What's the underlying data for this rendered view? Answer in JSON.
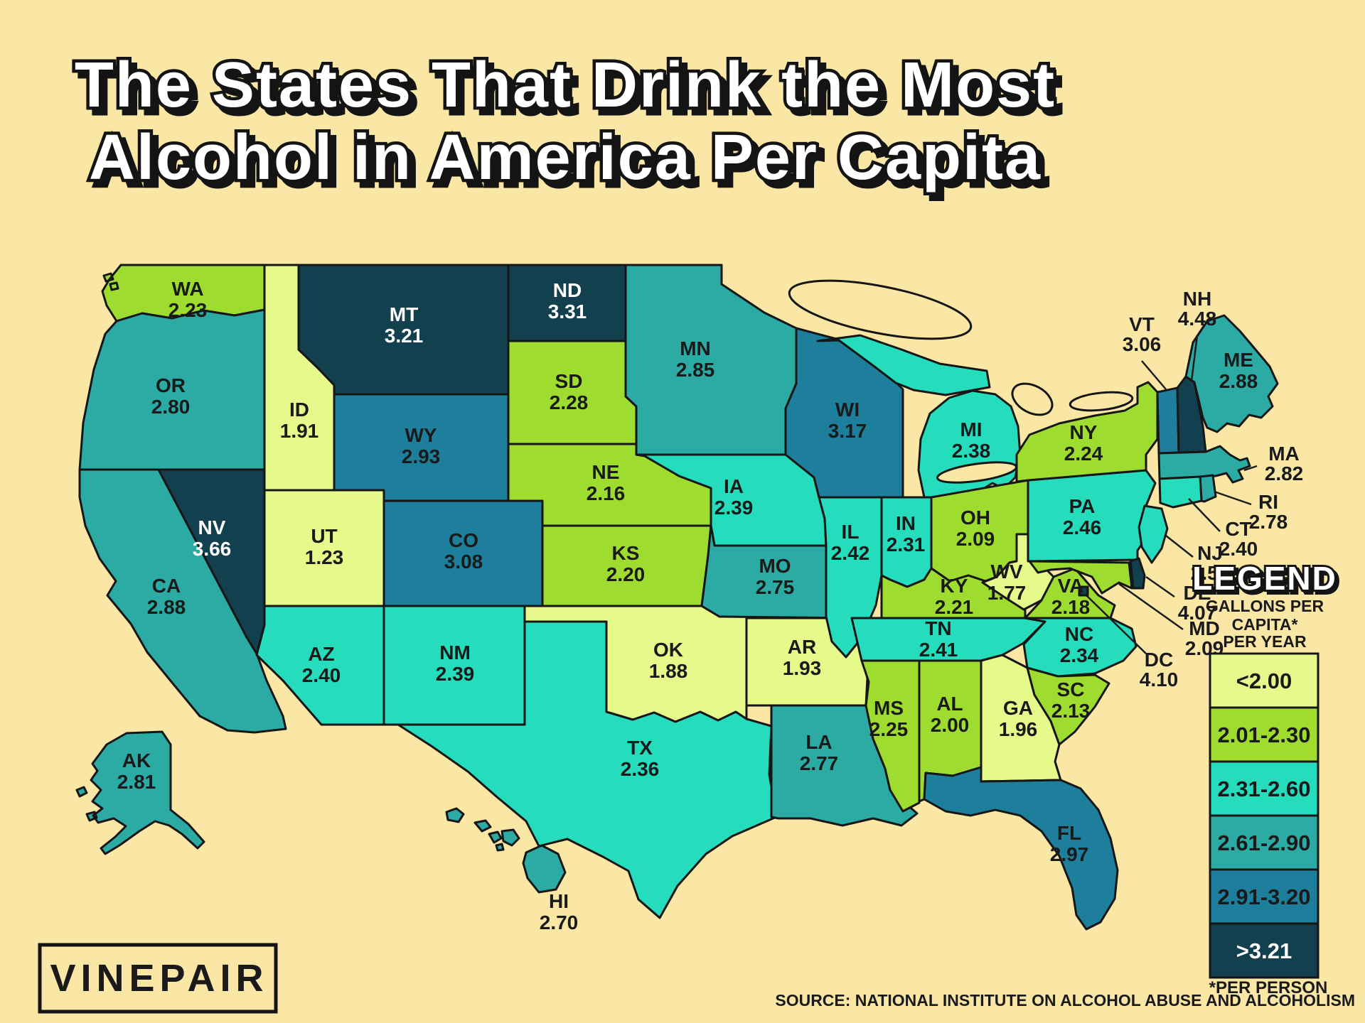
{
  "title": {
    "line1": "The States That Drink the Most",
    "line2": "Alcohol in America Per Capita"
  },
  "logo": "VINEPAIR",
  "source": "SOURCE: NATIONAL INSTITUTE ON ALCOHOL ABUSE AND ALCOHOLISM",
  "legend": {
    "title": "LEGEND",
    "subtitle_lines": [
      "GALLONS PER",
      "CAPITA*",
      "PER YEAR"
    ],
    "footnote": "*PER PERSON",
    "buckets": [
      {
        "label": "<2.00",
        "color": "#E6F98B"
      },
      {
        "label": "2.01-2.30",
        "color": "#9FDC30"
      },
      {
        "label": "2.31-2.60",
        "color": "#25DCBD"
      },
      {
        "label": "2.61-2.90",
        "color": "#2BABA4"
      },
      {
        "label": "2.91-3.20",
        "color": "#1D7F9C"
      },
      {
        "label": ">3.21",
        "color": "#12404F"
      }
    ]
  },
  "colors": {
    "background": "#FAE7A6",
    "outline": "#161616",
    "text_dark": "#1A1A1A",
    "text_light": "#FFFFFF"
  },
  "map": {
    "unit": "gallons per capita per year",
    "states": [
      {
        "id": "WA",
        "value": "2.23"
      },
      {
        "id": "OR",
        "value": "2.80"
      },
      {
        "id": "CA",
        "value": "2.88"
      },
      {
        "id": "AK",
        "value": "2.81"
      },
      {
        "id": "HI",
        "value": "2.70"
      },
      {
        "id": "NV",
        "value": "3.66"
      },
      {
        "id": "ID",
        "value": "1.91"
      },
      {
        "id": "UT",
        "value": "1.23"
      },
      {
        "id": "AZ",
        "value": "2.40"
      },
      {
        "id": "NM",
        "value": "2.39"
      },
      {
        "id": "MT",
        "value": "3.21"
      },
      {
        "id": "WY",
        "value": "2.93"
      },
      {
        "id": "CO",
        "value": "3.08"
      },
      {
        "id": "ND",
        "value": "3.31"
      },
      {
        "id": "SD",
        "value": "2.28"
      },
      {
        "id": "NE",
        "value": "2.16"
      },
      {
        "id": "KS",
        "value": "2.20"
      },
      {
        "id": "OK",
        "value": "1.88"
      },
      {
        "id": "TX",
        "value": "2.36"
      },
      {
        "id": "MN",
        "value": "2.85"
      },
      {
        "id": "IA",
        "value": "2.39"
      },
      {
        "id": "MO",
        "value": "2.75"
      },
      {
        "id": "AR",
        "value": "1.93"
      },
      {
        "id": "LA",
        "value": "2.77"
      },
      {
        "id": "WI",
        "value": "3.17"
      },
      {
        "id": "IL",
        "value": "2.42"
      },
      {
        "id": "IN",
        "value": "2.31"
      },
      {
        "id": "MI",
        "value": "2.38"
      },
      {
        "id": "OH",
        "value": "2.09"
      },
      {
        "id": "KY",
        "value": "2.21"
      },
      {
        "id": "TN",
        "value": "2.41"
      },
      {
        "id": "MS",
        "value": "2.25"
      },
      {
        "id": "AL",
        "value": "2.00"
      },
      {
        "id": "GA",
        "value": "1.96"
      },
      {
        "id": "WV",
        "value": "1.77"
      },
      {
        "id": "VA",
        "value": "2.18"
      },
      {
        "id": "NC",
        "value": "2.34"
      },
      {
        "id": "SC",
        "value": "2.13"
      },
      {
        "id": "FL",
        "value": "2.97"
      },
      {
        "id": "PA",
        "value": "2.46"
      },
      {
        "id": "NY",
        "value": "2.24"
      },
      {
        "id": "VT",
        "value": "3.06"
      },
      {
        "id": "NH",
        "value": "4.48"
      },
      {
        "id": "ME",
        "value": "2.88"
      },
      {
        "id": "MA",
        "value": "2.82"
      },
      {
        "id": "RI",
        "value": "2.78"
      },
      {
        "id": "CT",
        "value": "2.40"
      },
      {
        "id": "NJ",
        "value": "2.53"
      },
      {
        "id": "DE",
        "value": "4.07"
      },
      {
        "id": "MD",
        "value": "2.09"
      },
      {
        "id": "DC",
        "value": "4.10"
      }
    ]
  }
}
